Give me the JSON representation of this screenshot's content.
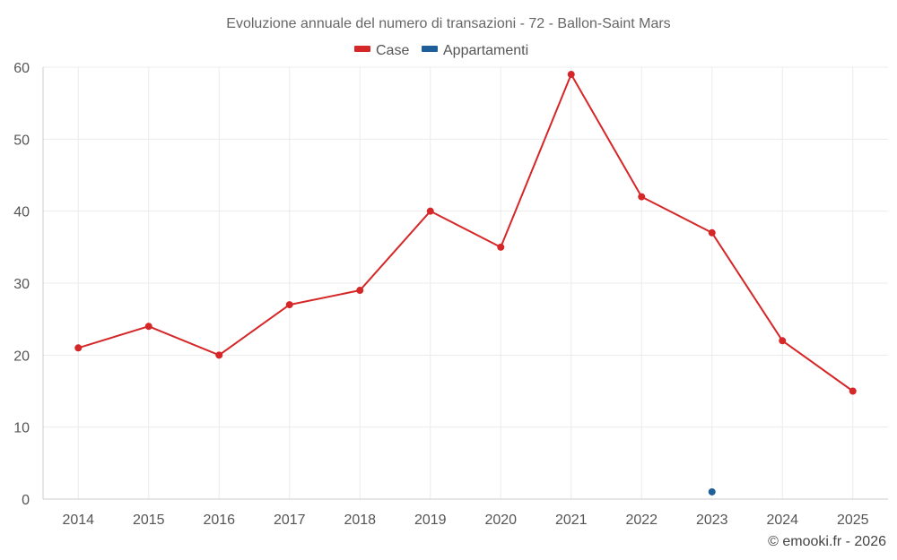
{
  "chart_data": {
    "type": "line",
    "title": "Evoluzione annuale del numero di transazioni - 72 - Ballon-Saint Mars",
    "categories": [
      "2014",
      "2015",
      "2016",
      "2017",
      "2018",
      "2019",
      "2020",
      "2021",
      "2022",
      "2023",
      "2024",
      "2025"
    ],
    "series": [
      {
        "name": "Case",
        "color": "#d62728",
        "values": [
          21,
          24,
          20,
          27,
          29,
          40,
          35,
          59,
          42,
          37,
          22,
          15
        ]
      },
      {
        "name": "Appartamenti",
        "color": "#1f5f99",
        "values": [
          null,
          null,
          null,
          null,
          null,
          null,
          null,
          null,
          null,
          1,
          null,
          null
        ]
      }
    ],
    "ylim": [
      0,
      60
    ],
    "yticks": [
      "0",
      "10",
      "20",
      "30",
      "40",
      "50",
      "60"
    ],
    "ytick_values": [
      0,
      10,
      20,
      30,
      40,
      50,
      60
    ],
    "grid": true,
    "legend": "top-center"
  },
  "credit": "© emooki.fr - 2026"
}
